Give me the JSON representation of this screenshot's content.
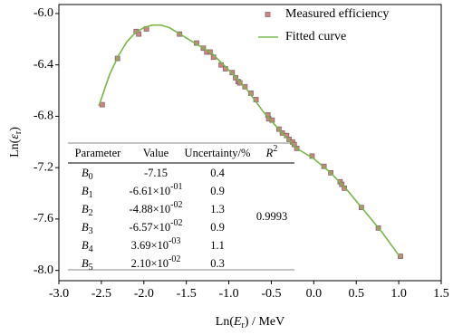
{
  "chart_data": {
    "type": "line",
    "xlabel": [
      "Ln(",
      "E",
      "r",
      ") / MeV"
    ],
    "ylabel": [
      "Ln(",
      "ε",
      "r",
      ")"
    ],
    "xlim": [
      -3.0,
      1.5
    ],
    "ylim": [
      -8.08,
      -5.93
    ],
    "xticks": [
      {
        "value": -3,
        "label": "-3.0"
      },
      -2.5,
      {
        "value": -2,
        "label": "-2.0"
      },
      -1.5,
      {
        "value": -1,
        "label": "-1.0"
      },
      -0.5,
      {
        "value": 0,
        "label": "0.0"
      },
      0.5,
      {
        "value": 1,
        "label": "1.0"
      },
      1.5
    ],
    "yticks": [
      {
        "value": -6,
        "label": "-6.0"
      },
      -6.4,
      -6.8,
      -7.2,
      -7.6,
      {
        "value": -8,
        "label": "-8.0"
      }
    ],
    "legend": "upper right",
    "series": [
      {
        "name": "Measured efficiency",
        "type": "scatter",
        "color": "#d98080",
        "edge": "#7a6a6a",
        "x": [
          -2.49,
          -2.31,
          -2.09,
          -2.06,
          -1.97,
          -1.58,
          -1.38,
          -1.3,
          -1.26,
          -1.22,
          -1.18,
          -1.09,
          -1.04,
          -0.96,
          -0.92,
          -0.89,
          -0.87,
          -0.81,
          -0.74,
          -0.68,
          -0.54,
          -0.53,
          -0.49,
          -0.41,
          -0.37,
          -0.32,
          -0.29,
          -0.25,
          -0.23,
          -0.2,
          -0.02,
          0.12,
          0.2,
          0.31,
          0.33,
          0.36,
          0.56,
          0.76,
          1.02
        ],
        "values": [
          -6.71,
          -6.35,
          -6.14,
          -6.16,
          -6.12,
          -6.16,
          -6.23,
          -6.27,
          -6.3,
          -6.3,
          -6.34,
          -6.4,
          -6.43,
          -6.46,
          -6.5,
          -6.53,
          -6.54,
          -6.57,
          -6.62,
          -6.67,
          -6.79,
          -6.82,
          -6.83,
          -6.9,
          -6.93,
          -6.95,
          -6.98,
          -7.0,
          -7.02,
          -7.05,
          -7.11,
          -7.19,
          -7.24,
          -7.31,
          -7.33,
          -7.36,
          -7.51,
          -7.67,
          -7.89
        ]
      },
      {
        "name": "Fitted curve",
        "type": "line",
        "color": "#7ab648",
        "x": [
          -2.53,
          -2.4,
          -2.3,
          -2.2,
          -2.1,
          -2.0,
          -1.9,
          -1.8,
          -1.7,
          -1.6,
          -1.5,
          -1.4,
          -1.2,
          -1.0,
          -0.8,
          -0.6,
          -0.4,
          -0.2,
          0,
          0.2,
          0.4,
          0.6,
          0.8,
          1.02
        ],
        "values": [
          -6.72,
          -6.47,
          -6.33,
          -6.22,
          -6.15,
          -6.11,
          -6.09,
          -6.09,
          -6.11,
          -6.15,
          -6.19,
          -6.23,
          -6.31,
          -6.44,
          -6.58,
          -6.76,
          -6.91,
          -7.05,
          -7.13,
          -7.24,
          -7.38,
          -7.54,
          -7.7,
          -7.9
        ]
      }
    ],
    "table": {
      "header": [
        "Parameter",
        "Value",
        "Uncertainty/%",
        [
          "R",
          "2"
        ]
      ],
      "rows": [
        [
          [
            "B",
            "0"
          ],
          [
            "-7.15"
          ],
          "0.4"
        ],
        [
          [
            "B",
            "1"
          ],
          [
            "-6.61×10",
            "-01"
          ],
          "0.9"
        ],
        [
          [
            "B",
            "2"
          ],
          [
            "-4.88×10",
            "-02"
          ],
          "1.3"
        ],
        [
          [
            "B",
            "3"
          ],
          [
            "-6.57×10",
            "-02"
          ],
          "0.9"
        ],
        [
          [
            "B",
            "4"
          ],
          [
            "3.69×10",
            "-03"
          ],
          "1.1"
        ],
        [
          [
            "B",
            "5"
          ],
          [
            "2.10×10",
            "-02"
          ],
          "0.3"
        ]
      ],
      "r2": "0.9993"
    }
  }
}
